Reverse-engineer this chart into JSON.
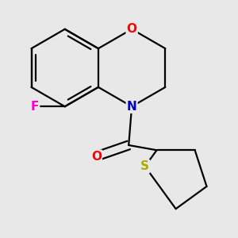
{
  "background_color": "#e8e8e8",
  "atom_colors": {
    "O": "#ff0000",
    "N": "#0000cc",
    "F": "#ff00cc",
    "S": "#aaaa00",
    "C": "#000000"
  },
  "bond_color": "#000000",
  "bond_width": 1.6,
  "font_size_atoms": 11
}
